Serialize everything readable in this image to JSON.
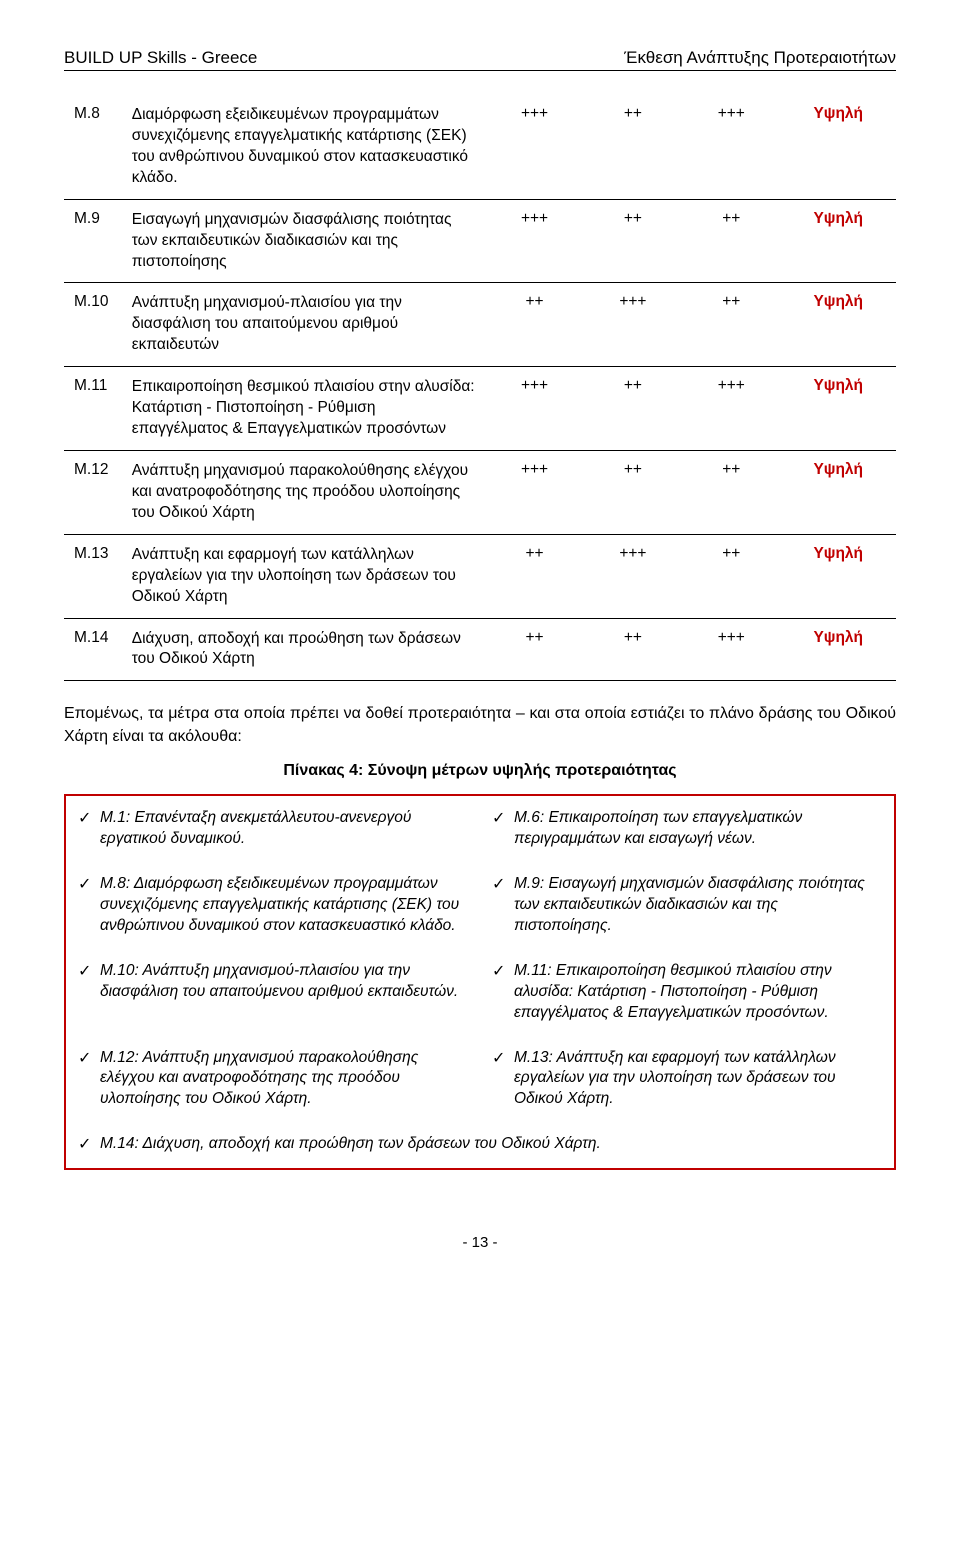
{
  "header": {
    "left": "BUILD UP Skills - Greece",
    "right": "Έκθεση Ανάπτυξης Προτεραιοτήτων"
  },
  "rows": [
    {
      "id": "Μ.8",
      "desc": "Διαμόρφωση εξειδικευμένων προγραμμάτων συνεχιζόμενης επαγγελματικής κατάρτισης (ΣΕΚ) του ανθρώπινου δυναμικού στον κατασκευαστικό κλάδο.",
      "c1": "+++",
      "c2": "++",
      "c3": "+++",
      "level": "Υψηλή"
    },
    {
      "id": "Μ.9",
      "desc": "Εισαγωγή μηχανισμών διασφάλισης ποιότητας των εκπαιδευτικών διαδικασιών και της πιστοποίησης",
      "c1": "+++",
      "c2": "++",
      "c3": "++",
      "level": "Υψηλή"
    },
    {
      "id": "Μ.10",
      "desc": "Ανάπτυξη μηχανισμού-πλαισίου για την διασφάλιση του απαιτούμενου αριθμού εκπαιδευτών",
      "c1": "++",
      "c2": "+++",
      "c3": "++",
      "level": "Υψηλή"
    },
    {
      "id": "Μ.11",
      "desc": "Επικαιροποίηση θεσμικού πλαισίου στην αλυσίδα: Κατάρτιση - Πιστοποίηση - Ρύθμιση επαγγέλματος & Επαγγελματικών προσόντων",
      "c1": "+++",
      "c2": "++",
      "c3": "+++",
      "level": "Υψηλή"
    },
    {
      "id": "Μ.12",
      "desc": "Ανάπτυξη μηχανισμού παρακολούθησης ελέγχου και ανατροφοδότησης της προόδου υλοποίησης του Οδικού Χάρτη",
      "c1": "+++",
      "c2": "++",
      "c3": "++",
      "level": "Υψηλή"
    },
    {
      "id": "Μ.13",
      "desc": "Ανάπτυξη και εφαρμογή των κατάλληλων εργαλείων για την υλοποίηση των δράσεων του Οδικού Χάρτη",
      "c1": "++",
      "c2": "+++",
      "c3": "++",
      "level": "Υψηλή"
    },
    {
      "id": "Μ.14",
      "desc": "Διάχυση, αποδοχή και προώθηση των δράσεων του Οδικού Χάρτη",
      "c1": "++",
      "c2": "++",
      "c3": "+++",
      "level": "Υψηλή"
    }
  ],
  "paragraph": "Επομένως, τα μέτρα στα οποία πρέπει να δοθεί προτεραιότητα – και στα οποία εστιάζει το πλάνο δράσης του Οδικού Χάρτη είναι τα ακόλουθα:",
  "caption": "Πίνακας 4: Σύνοψη μέτρων υψηλής προτεραιότητας",
  "summary": {
    "pairs": [
      {
        "l": "Μ.1: Επανένταξη ανεκμετάλλευτου-ανενεργού εργατικού δυναμικού.",
        "r": "Μ.6: Επικαιροποίηση των επαγγελματικών περιγραμμάτων και εισαγωγή νέων."
      },
      {
        "l": "Μ.8: Διαμόρφωση εξειδικευμένων προγραμμάτων συνεχιζόμενης επαγγελματικής κατάρτισης (ΣΕΚ) του ανθρώπινου δυναμικού στον κατασκευαστικό κλάδο.",
        "r": "Μ.9: Εισαγωγή μηχανισμών διασφάλισης ποιότητας των εκπαιδευτικών διαδικασιών και της πιστοποίησης."
      },
      {
        "l": "Μ.10: Ανάπτυξη μηχανισμού-πλαισίου για την διασφάλιση του απαιτούμενου αριθμού εκπαιδευτών.",
        "r": "Μ.11: Επικαιροποίηση θεσμικού πλαισίου στην αλυσίδα: Κατάρτιση - Πιστοποίηση - Ρύθμιση επαγγέλματος & Επαγγελματικών προσόντων."
      },
      {
        "l": "Μ.12: Ανάπτυξη μηχανισμού παρακολούθησης ελέγχου και ανατροφοδότησης της προόδου υλοποίησης του Οδικού Χάρτη.",
        "r": "Μ.13: Ανάπτυξη και εφαρμογή των κατάλληλων εργαλείων για την υλοποίηση των δράσεων του Οδικού Χάρτη."
      }
    ],
    "full": "Μ.14: Διάχυση, αποδοχή και προώθηση των δράσεων του Οδικού Χάρτη."
  },
  "footer": "- 13 -",
  "checkmark": "✓"
}
